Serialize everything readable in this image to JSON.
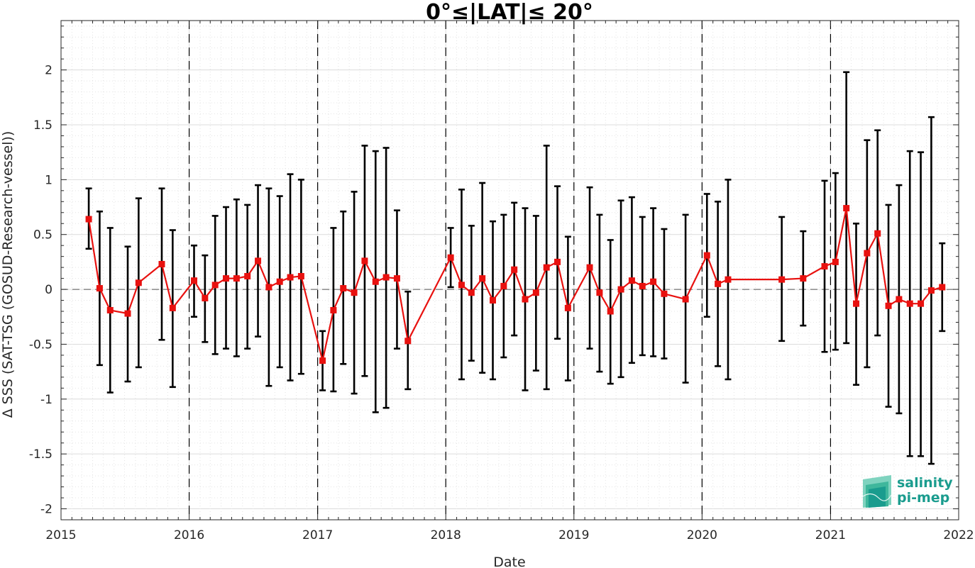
{
  "chart_data": {
    "type": "line",
    "title": "0°≤|LAT|≤ 20°",
    "xlabel": "Date",
    "ylabel": "Δ SSS (SAT-TSG (GOSUD-Research-vessel))",
    "xlim": [
      "2015-01-01",
      "2022-01-01"
    ],
    "ylim": [
      -2.1,
      2.45
    ],
    "x_ticks": [
      "2015",
      "2016",
      "2017",
      "2018",
      "2019",
      "2020",
      "2021",
      "2022"
    ],
    "y_ticks": [
      "2",
      "1.5",
      "1",
      "0.5",
      "0",
      "-0.5",
      "-1",
      "-1.5",
      "-2"
    ],
    "year_dividers": [
      "2016-01-01",
      "2017-01-01",
      "2018-01-01",
      "2019-01-01",
      "2020-01-01",
      "2021-01-01"
    ],
    "grid": true,
    "zero_line": true,
    "colors": {
      "series": "#e8110f",
      "errorbar": "#000000",
      "divider": "#000000",
      "logo": "#1a9c8e"
    },
    "series": [
      {
        "marker": "square",
        "points": [
          {
            "date": "2015-03-21",
            "y": 0.64,
            "lo": 0.37,
            "hi": 0.92
          },
          {
            "date": "2015-04-21",
            "y": 0.01,
            "lo": -0.69,
            "hi": 0.71
          },
          {
            "date": "2015-05-21",
            "y": -0.19,
            "lo": -0.94,
            "hi": 0.56
          },
          {
            "date": "2015-07-10",
            "y": -0.22,
            "lo": -0.84,
            "hi": 0.39
          },
          {
            "date": "2015-08-10",
            "y": 0.06,
            "lo": -0.71,
            "hi": 0.83
          },
          {
            "date": "2015-10-15",
            "y": 0.23,
            "lo": -0.46,
            "hi": 0.92
          },
          {
            "date": "2015-11-15",
            "y": -0.17,
            "lo": -0.89,
            "hi": 0.54
          },
          {
            "date": "2016-01-15",
            "y": 0.08,
            "lo": -0.25,
            "hi": 0.4
          },
          {
            "date": "2016-02-15",
            "y": -0.08,
            "lo": -0.48,
            "hi": 0.31
          },
          {
            "date": "2016-03-15",
            "y": 0.04,
            "lo": -0.59,
            "hi": 0.67
          },
          {
            "date": "2016-04-15",
            "y": 0.1,
            "lo": -0.54,
            "hi": 0.75
          },
          {
            "date": "2016-05-15",
            "y": 0.1,
            "lo": -0.61,
            "hi": 0.82
          },
          {
            "date": "2016-06-15",
            "y": 0.12,
            "lo": -0.54,
            "hi": 0.77
          },
          {
            "date": "2016-07-15",
            "y": 0.26,
            "lo": -0.43,
            "hi": 0.95
          },
          {
            "date": "2016-08-15",
            "y": 0.02,
            "lo": -0.88,
            "hi": 0.92
          },
          {
            "date": "2016-09-15",
            "y": 0.07,
            "lo": -0.71,
            "hi": 0.85
          },
          {
            "date": "2016-10-15",
            "y": 0.11,
            "lo": -0.83,
            "hi": 1.05
          },
          {
            "date": "2016-11-15",
            "y": 0.12,
            "lo": -0.77,
            "hi": 1.0
          },
          {
            "date": "2017-01-15",
            "y": -0.65,
            "lo": -0.92,
            "hi": -0.38
          },
          {
            "date": "2017-02-15",
            "y": -0.19,
            "lo": -0.93,
            "hi": 0.56
          },
          {
            "date": "2017-03-15",
            "y": 0.01,
            "lo": -0.68,
            "hi": 0.71
          },
          {
            "date": "2017-04-15",
            "y": -0.03,
            "lo": -0.95,
            "hi": 0.89
          },
          {
            "date": "2017-05-15",
            "y": 0.26,
            "lo": -0.79,
            "hi": 1.31
          },
          {
            "date": "2017-06-15",
            "y": 0.07,
            "lo": -1.12,
            "hi": 1.26
          },
          {
            "date": "2017-07-15",
            "y": 0.11,
            "lo": -1.08,
            "hi": 1.29
          },
          {
            "date": "2017-08-15",
            "y": 0.1,
            "lo": -0.54,
            "hi": 0.72
          },
          {
            "date": "2017-09-15",
            "y": -0.47,
            "lo": -0.91,
            "hi": -0.02
          },
          {
            "date": "2018-01-15",
            "y": 0.29,
            "lo": 0.02,
            "hi": 0.56
          },
          {
            "date": "2018-02-15",
            "y": 0.04,
            "lo": -0.82,
            "hi": 0.91
          },
          {
            "date": "2018-03-15",
            "y": -0.03,
            "lo": -0.65,
            "hi": 0.58
          },
          {
            "date": "2018-04-15",
            "y": 0.1,
            "lo": -0.76,
            "hi": 0.97
          },
          {
            "date": "2018-05-15",
            "y": -0.1,
            "lo": -0.82,
            "hi": 0.62
          },
          {
            "date": "2018-06-15",
            "y": 0.03,
            "lo": -0.62,
            "hi": 0.68
          },
          {
            "date": "2018-07-15",
            "y": 0.18,
            "lo": -0.42,
            "hi": 0.79
          },
          {
            "date": "2018-08-15",
            "y": -0.09,
            "lo": -0.92,
            "hi": 0.74
          },
          {
            "date": "2018-09-15",
            "y": -0.03,
            "lo": -0.74,
            "hi": 0.67
          },
          {
            "date": "2018-10-15",
            "y": 0.2,
            "lo": -0.91,
            "hi": 1.31
          },
          {
            "date": "2018-11-15",
            "y": 0.25,
            "lo": -0.45,
            "hi": 0.94
          },
          {
            "date": "2018-12-15",
            "y": -0.17,
            "lo": -0.83,
            "hi": 0.48
          },
          {
            "date": "2019-02-15",
            "y": 0.2,
            "lo": -0.54,
            "hi": 0.93
          },
          {
            "date": "2019-03-15",
            "y": -0.03,
            "lo": -0.75,
            "hi": 0.68
          },
          {
            "date": "2019-04-15",
            "y": -0.2,
            "lo": -0.86,
            "hi": 0.45
          },
          {
            "date": "2019-05-15",
            "y": 0.0,
            "lo": -0.8,
            "hi": 0.81
          },
          {
            "date": "2019-06-15",
            "y": 0.08,
            "lo": -0.67,
            "hi": 0.84
          },
          {
            "date": "2019-07-15",
            "y": 0.03,
            "lo": -0.6,
            "hi": 0.66
          },
          {
            "date": "2019-08-15",
            "y": 0.07,
            "lo": -0.61,
            "hi": 0.74
          },
          {
            "date": "2019-09-15",
            "y": -0.04,
            "lo": -0.63,
            "hi": 0.55
          },
          {
            "date": "2019-11-15",
            "y": -0.09,
            "lo": -0.85,
            "hi": 0.68
          },
          {
            "date": "2020-01-15",
            "y": 0.31,
            "lo": -0.25,
            "hi": 0.87
          },
          {
            "date": "2020-02-15",
            "y": 0.05,
            "lo": -0.7,
            "hi": 0.8
          },
          {
            "date": "2020-03-15",
            "y": 0.09,
            "lo": -0.82,
            "hi": 1.0
          },
          {
            "date": "2020-08-15",
            "y": 0.09,
            "lo": -0.47,
            "hi": 0.66
          },
          {
            "date": "2020-10-15",
            "y": 0.1,
            "lo": -0.33,
            "hi": 0.53
          },
          {
            "date": "2020-12-15",
            "y": 0.21,
            "lo": -0.57,
            "hi": 0.99
          },
          {
            "date": "2021-01-15",
            "y": 0.25,
            "lo": -0.55,
            "hi": 1.06
          },
          {
            "date": "2021-02-15",
            "y": 0.74,
            "lo": -0.49,
            "hi": 1.98
          },
          {
            "date": "2021-03-15",
            "y": -0.13,
            "lo": -0.87,
            "hi": 0.6
          },
          {
            "date": "2021-04-15",
            "y": 0.33,
            "lo": -0.71,
            "hi": 1.36
          },
          {
            "date": "2021-05-15",
            "y": 0.51,
            "lo": -0.42,
            "hi": 1.45
          },
          {
            "date": "2021-06-15",
            "y": -0.15,
            "lo": -1.07,
            "hi": 0.77
          },
          {
            "date": "2021-07-15",
            "y": -0.09,
            "lo": -1.13,
            "hi": 0.95
          },
          {
            "date": "2021-08-15",
            "y": -0.13,
            "lo": -1.52,
            "hi": 1.26
          },
          {
            "date": "2021-09-15",
            "y": -0.13,
            "lo": -1.52,
            "hi": 1.25
          },
          {
            "date": "2021-10-15",
            "y": -0.01,
            "lo": -1.59,
            "hi": 1.57
          },
          {
            "date": "2021-11-15",
            "y": 0.02,
            "lo": -0.38,
            "hi": 0.42
          }
        ]
      }
    ]
  },
  "logo": {
    "line1": "salinity",
    "line2": "pi-mep"
  }
}
